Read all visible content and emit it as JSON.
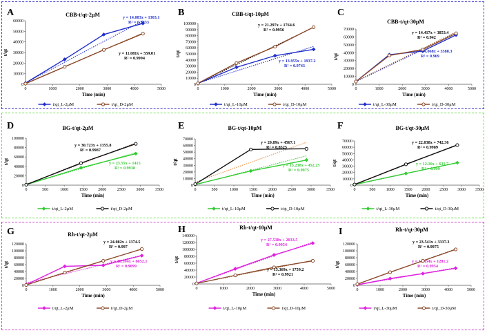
{
  "figure": {
    "rows": [
      {
        "name": "row-cbb",
        "border_color": "#3b3bc8"
      },
      {
        "name": "row-bg",
        "border_color": "#66dd44"
      },
      {
        "name": "row-rh",
        "border_color": "#cc44cc"
      }
    ]
  },
  "chart_data": [
    {
      "panel": "A",
      "type": "line",
      "title": "CBB-t/qt-2μM",
      "xlabel": "Time (min)",
      "ylabel": "t/qt",
      "xlim": [
        0,
        5000
      ],
      "xticks": [
        0,
        1000,
        2000,
        3000,
        4000,
        5000
      ],
      "ylim": [
        0,
        60000
      ],
      "yticks": [
        0,
        10000,
        20000,
        30000,
        40000,
        50000,
        60000
      ],
      "series": [
        {
          "name": "t/qt_L-2μM",
          "color": "#1f2ecc",
          "marker": "diamond",
          "x": [
            0,
            1440,
            2880,
            4320
          ],
          "y": [
            1200,
            23500,
            47000,
            57500
          ],
          "trend": {
            "slope": 14.083,
            "intercept": 1303.1,
            "color": "#1f2ecc"
          },
          "equation": "y = 14.083x + 1303.1",
          "r2": "R² = 0.9833"
        },
        {
          "name": "t/qt_D-2μM",
          "color": "#8b4a2b",
          "marker": "circle",
          "x": [
            0,
            1440,
            2880,
            4320
          ],
          "y": [
            600,
            16500,
            32500,
            47800
          ],
          "trend": {
            "slope": 11.081,
            "intercept": 559.01,
            "color": "#8b4a2b"
          },
          "equation": "y = 11.081x + 559.01",
          "r2": "R² = 0.9994"
        }
      ]
    },
    {
      "panel": "B",
      "type": "line",
      "title": "CBB-t/qt-10μM",
      "xlabel": "Time (min)",
      "ylabel": "t/qt",
      "xlim": [
        0,
        5000
      ],
      "xticks": [
        0,
        1000,
        2000,
        3000,
        4000,
        5000
      ],
      "ylim": [
        0,
        100000
      ],
      "yticks": [
        0,
        10000,
        20000,
        30000,
        40000,
        50000,
        60000,
        70000,
        80000,
        90000,
        100000
      ],
      "series": [
        {
          "name": "t/qt_L-10μM",
          "color": "#1f2ecc",
          "marker": "diamond",
          "x": [
            0,
            1440,
            2880,
            4320
          ],
          "y": [
            1500,
            28000,
            47000,
            57500
          ],
          "trend": {
            "slope": 13.955,
            "intercept": 1937.2,
            "color": "#1f2ecc"
          },
          "equation": "y = 13.955x + 1937.2",
          "r2": "R² = 0.9743"
        },
        {
          "name": "t/qt_D-10μM",
          "color": "#8b4a2b",
          "marker": "circle",
          "x": [
            0,
            1440,
            2880,
            4320
          ],
          "y": [
            1500,
            35000,
            62000,
            94000
          ],
          "trend": {
            "slope": 21.297,
            "intercept": 1764.6,
            "color": "#000000"
          },
          "equation": "y = 21.297x + 1764.6",
          "r2": "R² = 0.9956"
        }
      ]
    },
    {
      "panel": "C",
      "type": "line",
      "title": "CBB-t/qt-30μM",
      "xlabel": "Time (min)",
      "ylabel": "t/qt",
      "xlim": [
        0,
        5000
      ],
      "xticks": [
        0,
        1000,
        2000,
        3000,
        4000,
        5000
      ],
      "ylim": [
        0,
        70000
      ],
      "yticks": [
        0,
        10000,
        20000,
        30000,
        40000,
        50000,
        60000,
        70000
      ],
      "series": [
        {
          "name": "t/qt_L-30μM",
          "color": "#1f2ecc",
          "marker": "diamond",
          "x": [
            0,
            1440,
            2880,
            4320
          ],
          "y": [
            3500,
            37500,
            42000,
            62500
          ],
          "trend": {
            "slope": 14.068,
            "intercept": 3388.3,
            "color": "#1f2ecc"
          },
          "equation": "y = 14.068x + 3388.3",
          "r2": "R² = 0.969"
        },
        {
          "name": "t/qt_D-30μM",
          "color": "#8b4a2b",
          "marker": "circle",
          "x": [
            0,
            1440,
            2880,
            4320
          ],
          "y": [
            3500,
            36500,
            44000,
            64500
          ],
          "trend": {
            "slope": 14.417,
            "intercept": 3853.4,
            "color": "#8b4a2b"
          },
          "equation": "y = 14.417x + 3853.4",
          "r2": "R² = 0.942"
        }
      ]
    },
    {
      "panel": "D",
      "type": "line",
      "title": "BG-t/qt-2μM",
      "xlabel": "Time (min)",
      "ylabel": "t/qt",
      "xlim": [
        0,
        3500
      ],
      "xticks": [
        0,
        500,
        1000,
        1500,
        2000,
        2500,
        3000,
        3500
      ],
      "ylim": [
        0,
        100000
      ],
      "yticks": [
        0,
        20000,
        40000,
        60000,
        80000,
        100000
      ],
      "series": [
        {
          "name": "t/qt_L-2μM",
          "color": "#33cc33",
          "marker": "diamond",
          "x": [
            0,
            1440,
            2880
          ],
          "y": [
            1000,
            37000,
            67000
          ],
          "trend": {
            "slope": 23.55,
            "intercept": 1415,
            "color": "#33cc33"
          },
          "equation": "y = 23.55x + 1415",
          "r2": "R² = 0.9938"
        },
        {
          "name": "t/qt_D-2μM",
          "color": "#111111",
          "marker": "circle",
          "x": [
            0,
            1440,
            2880
          ],
          "y": [
            1000,
            47000,
            88000
          ],
          "trend": {
            "slope": 30.723,
            "intercept": 1355.8,
            "color": "#8b4a2b"
          },
          "equation": "y = 30.723x + 1355.8",
          "r2": "R² = 0.9987"
        }
      ]
    },
    {
      "panel": "E",
      "type": "line",
      "title": "BG-t/qt-10μM",
      "xlabel": "Time (min)",
      "ylabel": "t/qt",
      "xlim": [
        0,
        3500
      ],
      "xticks": [
        0,
        500,
        1000,
        1500,
        2000,
        2500,
        3000,
        3500
      ],
      "ylim": [
        0,
        70000
      ],
      "yticks": [
        0,
        10000,
        20000,
        30000,
        40000,
        50000,
        60000,
        70000
      ],
      "series": [
        {
          "name": "t/qt_L-10μM",
          "color": "#33cc33",
          "marker": "diamond",
          "x": [
            0,
            1440,
            2880
          ],
          "y": [
            1000,
            21500,
            38000
          ],
          "trend": {
            "slope": 15.238,
            "intercept": 452.25,
            "color": "#33cc33"
          },
          "equation": "y = 15.238x + 452.25",
          "r2": "R² = 0.9975"
        },
        {
          "name": "t/qt_D-10μM",
          "color": "#111111",
          "marker": "circle",
          "x": [
            0,
            1440,
            2880
          ],
          "y": [
            1500,
            54000,
            55000
          ],
          "trend": {
            "slope": 20.89,
            "intercept": 4567.1,
            "color": "#ee8833"
          },
          "equation": "y = 20.89x + 4567.1",
          "r2": "R² = 0.8525"
        }
      ]
    },
    {
      "panel": "F",
      "type": "line",
      "title": "BG-t/qt-30μM",
      "xlabel": "Time (min)",
      "ylabel": "t/qt",
      "xlim": [
        0,
        3500
      ],
      "xticks": [
        0,
        500,
        1000,
        1500,
        2000,
        2500,
        3000,
        3500
      ],
      "ylim": [
        0,
        70000
      ],
      "yticks": [
        0,
        10000,
        20000,
        30000,
        40000,
        50000,
        60000,
        70000
      ],
      "series": [
        {
          "name": "t/qt_L-30μM",
          "color": "#33cc33",
          "marker": "diamond",
          "x": [
            0,
            1440,
            2880
          ],
          "y": [
            1000,
            18500,
            35500
          ],
          "trend": {
            "slope": 12.16,
            "intercept": 631.7,
            "color": "#33cc33"
          },
          "equation": "y = 12.16x + 631.7",
          "r2": "R² = 0.999"
        },
        {
          "name": "t/qt_D-30μM",
          "color": "#111111",
          "marker": "circle",
          "x": [
            0,
            1440,
            2880
          ],
          "y": [
            1000,
            33000,
            63500
          ],
          "trend": {
            "slope": 22.038,
            "intercept": 742.36,
            "color": "#8b4a2b"
          },
          "equation": "y = 22.038x + 742.36",
          "r2": "R² = 0.9989"
        }
      ]
    },
    {
      "panel": "G",
      "type": "line",
      "title": "Rh-t/qt-2μM",
      "xlabel": "Time (min)",
      "ylabel": "t/qt",
      "xlim": [
        0,
        5000
      ],
      "xticks": [
        0,
        1000,
        2000,
        3000,
        4000,
        5000
      ],
      "ylim": [
        0,
        120000
      ],
      "yticks": [
        0,
        20000,
        40000,
        60000,
        80000,
        100000,
        120000
      ],
      "series": [
        {
          "name": "t/qt_L-2μM",
          "color": "#dd22dd",
          "marker": "diamond",
          "x": [
            0,
            1440,
            2880,
            4320
          ],
          "y": [
            2000,
            55000,
            58000,
            86000
          ],
          "trend": {
            "slope": 18.594,
            "intercept": 6652.1,
            "color": "#dd22dd"
          },
          "equation": "y = 18.594x + 6652.1",
          "r2": "R² = 0.9099"
        },
        {
          "name": "t/qt_D-2μM",
          "color": "#8b4a2b",
          "marker": "circle",
          "x": [
            0,
            1440,
            2880,
            4320
          ],
          "y": [
            1000,
            37000,
            71000,
            105000
          ],
          "trend": {
            "slope": 24.082,
            "intercept": 1374.5,
            "color": "#8b4a2b"
          },
          "equation": "y = 24.082x + 1374.5",
          "r2": "R² = 0.997"
        }
      ]
    },
    {
      "panel": "H",
      "type": "line",
      "title": "Rh-t/qt-10μM",
      "xlabel": "Time (min)",
      "ylabel": "t/qt",
      "xlim": [
        0,
        5000
      ],
      "xticks": [
        0,
        1000,
        2000,
        3000,
        4000,
        5000
      ],
      "ylim": [
        0,
        140000
      ],
      "yticks": [
        0,
        20000,
        40000,
        60000,
        80000,
        100000,
        120000,
        140000
      ],
      "series": [
        {
          "name": "t/qt_L-10μM",
          "color": "#dd22dd",
          "marker": "diamond",
          "x": [
            0,
            1440,
            2880,
            4320
          ],
          "y": [
            2000,
            44000,
            84000,
            118000
          ],
          "trend": {
            "slope": 27.538,
            "intercept": 2033.5,
            "color": "#dd22dd"
          },
          "equation": "y = 27.538x + 2033.5",
          "r2": "R² = 0.9954"
        },
        {
          "name": "t/qt_D-10μM",
          "color": "#8b4a2b",
          "marker": "circle",
          "x": [
            0,
            1440,
            2880,
            4320
          ],
          "y": [
            1500,
            25000,
            48000,
            67000
          ],
          "trend": {
            "slope": 15.369,
            "intercept": 1759.2,
            "color": "#8b4a2b"
          },
          "equation": "y = 15.369x + 1759.2",
          "r2": "R² = 0.9921"
        }
      ]
    },
    {
      "panel": "I",
      "type": "line",
      "title": "Rh-t/qt-30μM",
      "xlabel": "Time (min)",
      "ylabel": "t/qt",
      "xlim": [
        0,
        5000
      ],
      "xticks": [
        0,
        1000,
        2000,
        3000,
        4000,
        5000
      ],
      "ylim": [
        0,
        120000
      ],
      "yticks": [
        0,
        20000,
        40000,
        60000,
        80000,
        100000,
        120000
      ],
      "series": [
        {
          "name": "t/qt_L-30μM",
          "color": "#dd22dd",
          "marker": "diamond",
          "x": [
            0,
            1440,
            2880,
            4320
          ],
          "y": [
            1500,
            19500,
            34000,
            49500
          ],
          "trend": {
            "slope": 11.454,
            "intercept": 1281.2,
            "color": "#dd22dd"
          },
          "equation": "y = 11.454x + 1281.2",
          "r2": "R² = 0.9954"
        },
        {
          "name": "t/qt_D-30μM",
          "color": "#8b4a2b",
          "marker": "circle",
          "x": [
            0,
            1440,
            2880,
            4320
          ],
          "y": [
            3500,
            38000,
            71000,
            104000
          ],
          "trend": {
            "slope": 23.541,
            "intercept": 3337.3,
            "color": "#8b4a2b"
          },
          "equation": "y = 23.541x + 3337.3",
          "r2": "R² = 0.9975"
        }
      ]
    }
  ]
}
